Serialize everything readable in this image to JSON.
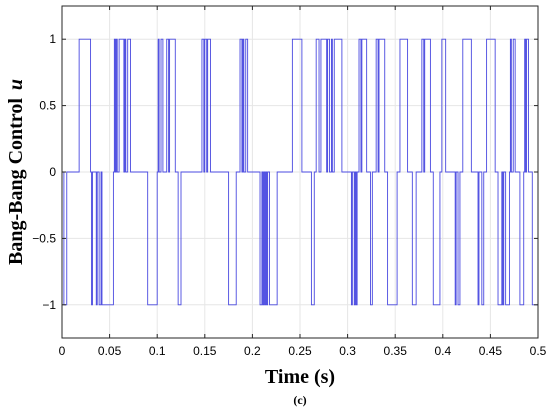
{
  "chart_data": {
    "type": "line",
    "title": "",
    "xlabel": "Time (s)",
    "ylabel_text": "Bang-Bang Control",
    "ylabel_symbol": "u",
    "caption": "(c)",
    "xlim": [
      0,
      0.5
    ],
    "ylim": [
      -1.25,
      1.25
    ],
    "xticks": [
      0,
      0.05,
      0.1,
      0.15,
      0.2,
      0.25,
      0.3,
      0.35,
      0.4,
      0.45,
      0.5
    ],
    "xtick_labels": [
      "0",
      "0.05",
      "0.1",
      "0.15",
      "0.2",
      "0.25",
      "0.3",
      "0.35",
      "0.4",
      "0.45",
      "0.5"
    ],
    "yticks": [
      -1,
      -0.5,
      0,
      0.5,
      1
    ],
    "ytick_labels": [
      "−1",
      "−0.5",
      "0",
      "0.5",
      "1"
    ],
    "grid": true,
    "line_color": "#4a4ae0",
    "series": [
      {
        "steps": [
          [
            0.0,
            0
          ],
          [
            0.002,
            -1
          ],
          [
            0.005,
            0
          ],
          [
            0.018,
            1
          ],
          [
            0.03,
            0
          ],
          [
            0.031,
            -1
          ],
          [
            0.032,
            0
          ],
          [
            0.036,
            -1
          ],
          [
            0.037,
            0
          ],
          [
            0.039,
            -1
          ],
          [
            0.041,
            0
          ],
          [
            0.042,
            -1
          ],
          [
            0.054,
            0
          ],
          [
            0.055,
            1
          ],
          [
            0.056,
            0
          ],
          [
            0.057,
            1
          ],
          [
            0.058,
            0
          ],
          [
            0.06,
            1
          ],
          [
            0.065,
            0
          ],
          [
            0.066,
            1
          ],
          [
            0.067,
            0
          ],
          [
            0.069,
            1
          ],
          [
            0.072,
            0
          ],
          [
            0.09,
            -1
          ],
          [
            0.1,
            0
          ],
          [
            0.101,
            1
          ],
          [
            0.102,
            0
          ],
          [
            0.104,
            1
          ],
          [
            0.106,
            0
          ],
          [
            0.11,
            1
          ],
          [
            0.112,
            0
          ],
          [
            0.113,
            1
          ],
          [
            0.119,
            0
          ],
          [
            0.122,
            -1
          ],
          [
            0.125,
            0
          ],
          [
            0.147,
            1
          ],
          [
            0.149,
            0
          ],
          [
            0.15,
            1
          ],
          [
            0.152,
            0
          ],
          [
            0.153,
            1
          ],
          [
            0.156,
            0
          ],
          [
            0.175,
            -1
          ],
          [
            0.183,
            0
          ],
          [
            0.187,
            1
          ],
          [
            0.189,
            0
          ],
          [
            0.19,
            1
          ],
          [
            0.191,
            0
          ],
          [
            0.193,
            1
          ],
          [
            0.195,
            0
          ],
          [
            0.208,
            -1
          ],
          [
            0.21,
            0
          ],
          [
            0.211,
            -1
          ],
          [
            0.212,
            0
          ],
          [
            0.213,
            -1
          ],
          [
            0.214,
            0
          ],
          [
            0.215,
            -1
          ],
          [
            0.216,
            0
          ],
          [
            0.218,
            -1
          ],
          [
            0.226,
            0
          ],
          [
            0.242,
            1
          ],
          [
            0.252,
            0
          ],
          [
            0.262,
            -1
          ],
          [
            0.265,
            0
          ],
          [
            0.267,
            1
          ],
          [
            0.27,
            0
          ],
          [
            0.272,
            1
          ],
          [
            0.278,
            0
          ],
          [
            0.279,
            1
          ],
          [
            0.281,
            0
          ],
          [
            0.283,
            1
          ],
          [
            0.284,
            0
          ],
          [
            0.286,
            1
          ],
          [
            0.294,
            0
          ],
          [
            0.304,
            -1
          ],
          [
            0.305,
            0
          ],
          [
            0.307,
            -1
          ],
          [
            0.308,
            0
          ],
          [
            0.309,
            -1
          ],
          [
            0.31,
            0
          ],
          [
            0.312,
            1
          ],
          [
            0.314,
            0
          ],
          [
            0.315,
            1
          ],
          [
            0.32,
            0
          ],
          [
            0.324,
            -1
          ],
          [
            0.326,
            0
          ],
          [
            0.33,
            1
          ],
          [
            0.332,
            0
          ],
          [
            0.333,
            1
          ],
          [
            0.339,
            0
          ],
          [
            0.342,
            -1
          ],
          [
            0.352,
            0
          ],
          [
            0.355,
            1
          ],
          [
            0.363,
            0
          ],
          [
            0.368,
            -1
          ],
          [
            0.372,
            0
          ],
          [
            0.378,
            1
          ],
          [
            0.38,
            0
          ],
          [
            0.381,
            1
          ],
          [
            0.387,
            0
          ],
          [
            0.39,
            -1
          ],
          [
            0.397,
            0
          ],
          [
            0.399,
            1
          ],
          [
            0.403,
            0
          ],
          [
            0.413,
            -1
          ],
          [
            0.414,
            0
          ],
          [
            0.416,
            -1
          ],
          [
            0.418,
            0
          ],
          [
            0.421,
            1
          ],
          [
            0.43,
            0
          ],
          [
            0.437,
            -1
          ],
          [
            0.438,
            0
          ],
          [
            0.441,
            -1
          ],
          [
            0.443,
            0
          ],
          [
            0.446,
            1
          ],
          [
            0.455,
            0
          ],
          [
            0.458,
            -1
          ],
          [
            0.462,
            0
          ],
          [
            0.463,
            -1
          ],
          [
            0.464,
            0
          ],
          [
            0.466,
            -1
          ],
          [
            0.47,
            0
          ],
          [
            0.471,
            1
          ],
          [
            0.472,
            0
          ],
          [
            0.474,
            1
          ],
          [
            0.476,
            0
          ],
          [
            0.481,
            -1
          ],
          [
            0.485,
            0
          ],
          [
            0.486,
            1
          ],
          [
            0.487,
            0
          ],
          [
            0.488,
            1
          ],
          [
            0.49,
            0
          ],
          [
            0.494,
            -1
          ],
          [
            0.5,
            -1
          ]
        ]
      }
    ]
  }
}
